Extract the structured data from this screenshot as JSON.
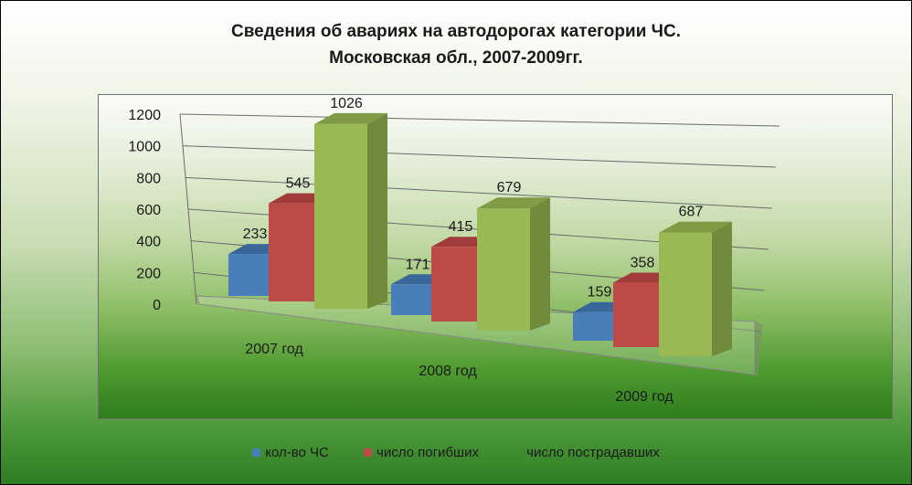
{
  "colors": {
    "series": [
      "#4a7ebb",
      "#be4b48",
      "#98b954"
    ],
    "series_side": [
      "#365f92",
      "#8e3432",
      "#6f8b3b"
    ],
    "series_top": [
      "#3a6799",
      "#a13c3a",
      "#7f9c45"
    ]
  },
  "chart_data": {
    "type": "bar",
    "title": "Сведения об авариях на автодорогах категории ЧС. Московская обл., 2007-2009гг.",
    "title_lines": [
      "Сведения об авариях  на автодорогах  категории ЧС.",
      "Московская обл., 2007-2009гг."
    ],
    "categories": [
      "2007 год",
      "2008 год",
      "2009 год"
    ],
    "series": [
      {
        "name": "кол-во ЧС",
        "values": [
          233,
          171,
          159
        ]
      },
      {
        "name": "число погибших",
        "values": [
          545,
          415,
          358
        ]
      },
      {
        "name": "число пострадавших",
        "values": [
          1026,
          679,
          687
        ]
      }
    ],
    "yticks": [
      "0",
      "200",
      "400",
      "600",
      "800",
      "1000",
      "1200"
    ],
    "ylim": [
      0,
      1200
    ],
    "grid": true,
    "legend_position": "bottom",
    "style": "3d-clustered-column"
  }
}
